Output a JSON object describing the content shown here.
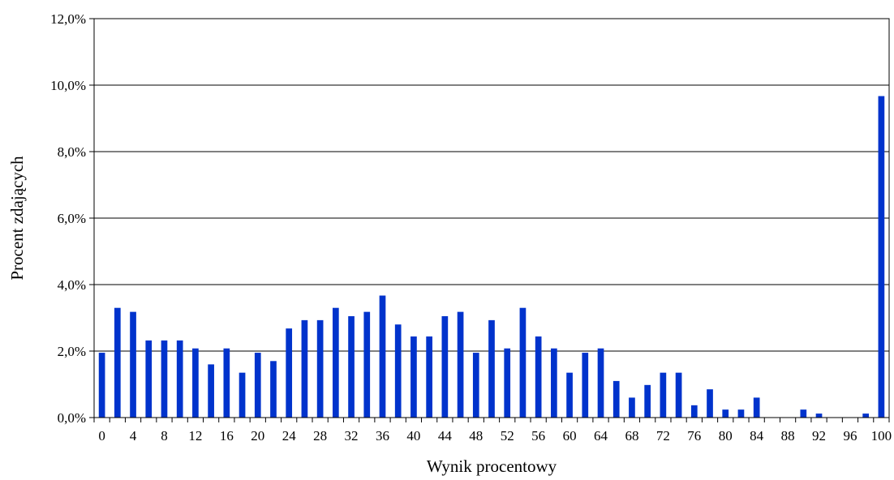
{
  "chart_data": {
    "type": "bar",
    "xlabel": "Wynik procentowy",
    "ylabel": "Procent zdających",
    "ylim": [
      0,
      12
    ],
    "yticks": [
      0,
      2,
      4,
      6,
      8,
      10,
      12
    ],
    "ytick_labels": [
      "0,0%",
      "2,0%",
      "4,0%",
      "6,0%",
      "8,0%",
      "10,0%",
      "12,0%"
    ],
    "grid": "horizontal",
    "legend": "none",
    "bar_color": "#0033CC",
    "categories": [
      0,
      2,
      4,
      6,
      8,
      10,
      12,
      14,
      16,
      18,
      20,
      22,
      24,
      26,
      28,
      30,
      32,
      34,
      36,
      38,
      40,
      42,
      44,
      46,
      48,
      50,
      52,
      54,
      56,
      58,
      60,
      62,
      64,
      66,
      68,
      70,
      72,
      74,
      76,
      78,
      80,
      82,
      84,
      86,
      88,
      90,
      92,
      94,
      96,
      98,
      100
    ],
    "xtick_labels": [
      "0",
      "4",
      "8",
      "12",
      "16",
      "20",
      "24",
      "28",
      "32",
      "36",
      "40",
      "44",
      "48",
      "52",
      "56",
      "60",
      "64",
      "68",
      "72",
      "76",
      "80",
      "84",
      "88",
      "92",
      "96",
      "100"
    ],
    "values": [
      1.95,
      3.3,
      3.18,
      2.32,
      2.32,
      2.32,
      2.08,
      1.6,
      2.08,
      1.35,
      1.95,
      1.7,
      2.68,
      2.93,
      2.93,
      3.3,
      3.05,
      3.18,
      3.67,
      2.8,
      2.44,
      2.44,
      3.05,
      3.18,
      1.95,
      2.93,
      2.08,
      3.3,
      2.44,
      2.08,
      1.35,
      1.95,
      2.08,
      1.1,
      0.6,
      0.98,
      1.35,
      1.35,
      0.37,
      0.85,
      0.24,
      0.24,
      0.6,
      0,
      0,
      0.24,
      0.12,
      0,
      0,
      0.12,
      9.67
    ]
  }
}
